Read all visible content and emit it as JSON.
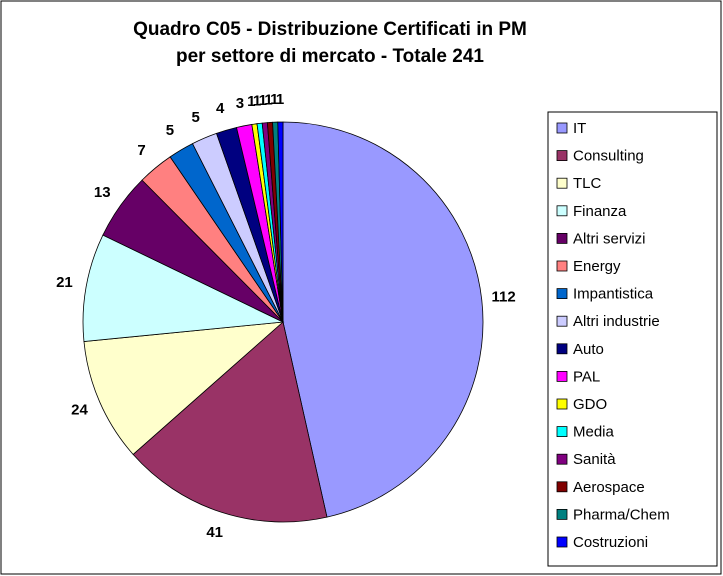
{
  "chart_data": {
    "type": "pie",
    "title": [
      "Quadro C05 - Distribuzione Certificati in PM",
      "per settore di mercato - Totale 241"
    ],
    "categories": [
      "IT",
      "Consulting",
      "TLC",
      "Finanza",
      "Altri servizi",
      "Energy",
      "Impantistica",
      "Altri industrie",
      "Auto",
      "PAL",
      "GDO",
      "Media",
      "Sanità",
      "Aerospace",
      "Pharma/Chem",
      "Costruzioni"
    ],
    "values": [
      112,
      41,
      24,
      21,
      13,
      7,
      5,
      5,
      4,
      3,
      1,
      1,
      1,
      1,
      1,
      1
    ],
    "colors": [
      "#9999FF",
      "#993366",
      "#FFFFCC",
      "#CCFFFF",
      "#660066",
      "#FF8080",
      "#0066CC",
      "#CCCCFF",
      "#000080",
      "#FF00FF",
      "#FFFF00",
      "#00FFFF",
      "#800080",
      "#800000",
      "#008080",
      "#0000FF"
    ],
    "legend": "right"
  }
}
